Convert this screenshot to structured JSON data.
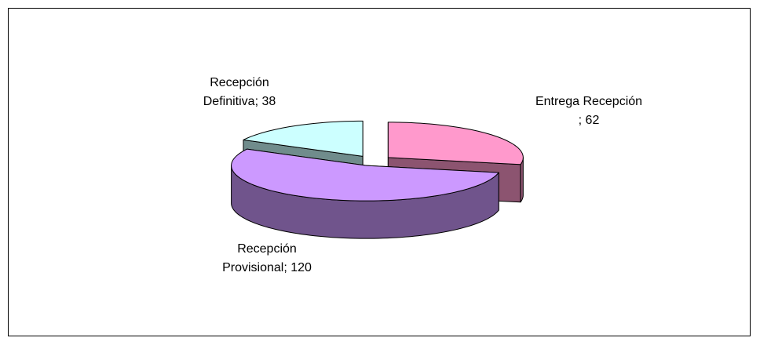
{
  "chart_data": {
    "type": "pie3d",
    "categories": [
      "Entrega Recepción",
      "Recepción Provisional",
      "Recepción Definitiva"
    ],
    "values": [
      62,
      120,
      38
    ],
    "value_labels": [
      "; 62",
      "; 120",
      "; 38"
    ],
    "colors": [
      "#ff99cc",
      "#cc99ff",
      "#ccffff"
    ],
    "exploded": true
  }
}
